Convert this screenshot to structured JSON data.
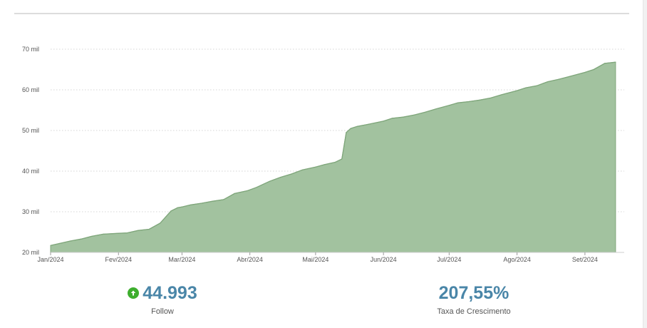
{
  "chart_data": {
    "type": "area",
    "title": "",
    "xlabel": "",
    "ylabel": "",
    "ylim": [
      20000,
      70000
    ],
    "y_ticks": [
      {
        "value": 20000,
        "label": "20 mil"
      },
      {
        "value": 30000,
        "label": "30 mil"
      },
      {
        "value": 40000,
        "label": "40 mil"
      },
      {
        "value": 50000,
        "label": "50 mil"
      },
      {
        "value": 60000,
        "label": "60 mil"
      },
      {
        "value": 70000,
        "label": "70 mil"
      }
    ],
    "x_ticks": [
      "Jan/2024",
      "Fev/2024",
      "Mar/2024",
      "Abr/2024",
      "Mai/2024",
      "Jun/2024",
      "Jul/2024",
      "Ago/2024",
      "Set/2024"
    ],
    "x_range": [
      "2024-01-01",
      "2024-09-16"
    ],
    "grid": true,
    "fill_color": "#a2c29f",
    "line_color": "#7fa67b",
    "series": [
      {
        "x": [
          "2024-01-01",
          "2024-01-05",
          "2024-01-10",
          "2024-01-15",
          "2024-01-20",
          "2024-01-25",
          "2024-02-01",
          "2024-02-05",
          "2024-02-10",
          "2024-02-15",
          "2024-02-20",
          "2024-02-25",
          "2024-02-28",
          "2024-03-01",
          "2024-03-05",
          "2024-03-10",
          "2024-03-15",
          "2024-03-20",
          "2024-03-25",
          "2024-03-31",
          "2024-04-04",
          "2024-04-10",
          "2024-04-15",
          "2024-04-20",
          "2024-04-25",
          "2024-05-01",
          "2024-05-05",
          "2024-05-10",
          "2024-05-13",
          "2024-05-15",
          "2024-05-17",
          "2024-05-20",
          "2024-05-25",
          "2024-06-01",
          "2024-06-05",
          "2024-06-10",
          "2024-06-15",
          "2024-06-20",
          "2024-06-25",
          "2024-07-01",
          "2024-07-05",
          "2024-07-10",
          "2024-07-15",
          "2024-07-20",
          "2024-07-25",
          "2024-08-01",
          "2024-08-05",
          "2024-08-10",
          "2024-08-15",
          "2024-08-20",
          "2024-08-25",
          "2024-09-01",
          "2024-09-05",
          "2024-09-10",
          "2024-09-15"
        ],
        "values": [
          21700,
          22200,
          22800,
          23300,
          24000,
          24500,
          24700,
          24800,
          25400,
          25700,
          27200,
          30200,
          31000,
          31200,
          31700,
          32100,
          32600,
          33000,
          34500,
          35200,
          36000,
          37500,
          38500,
          39300,
          40300,
          41000,
          41600,
          42200,
          43000,
          49500,
          50500,
          51000,
          51500,
          52300,
          53000,
          53300,
          53800,
          54500,
          55300,
          56200,
          56800,
          57100,
          57500,
          58000,
          58800,
          59800,
          60500,
          61000,
          62000,
          62600,
          63300,
          64300,
          65000,
          66500,
          66800
        ]
      }
    ]
  },
  "stats": {
    "follow": {
      "value": "44.993",
      "label": "Follow",
      "icon": "arrow-up-circle-icon"
    },
    "growth": {
      "value": "207,55%",
      "label": "Taxa de Crescimento"
    }
  }
}
